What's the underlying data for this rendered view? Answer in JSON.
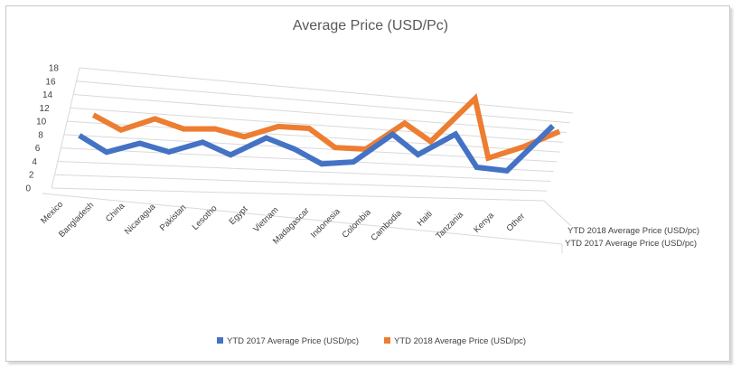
{
  "chart_data": {
    "type": "line",
    "title": "Average Price (USD/Pc)",
    "categories": [
      "Mexico",
      "Bangladesh",
      "China",
      "Nicaragua",
      "Pakistan",
      "Lesotho",
      "Egypt",
      "Vietnam",
      "Madagascar",
      "Indonesia",
      "Colombia",
      "Cambodia",
      "Haiti",
      "Tanzania",
      "Kenya",
      "Other"
    ],
    "ylim": [
      0,
      18
    ],
    "yticks": [
      0,
      2,
      4,
      6,
      8,
      10,
      12,
      14,
      16,
      18
    ],
    "series": [
      {
        "name": "YTD 2017 Average Price (USD/pc)",
        "color": "#4472C4",
        "values": [
          8.0,
          5.7,
          7.3,
          6.2,
          8.0,
          6.2,
          9.3,
          7.7,
          5.4,
          6.0,
          11.3,
          7.9,
          12.1,
          6.1,
          5.7,
          15.1
        ]
      },
      {
        "name": "YTD 2018 Average Price (USD/pc)",
        "color": "#ED7D31",
        "values": [
          10.0,
          8.0,
          10.0,
          8.7,
          9.0,
          8.0,
          10.0,
          10.0,
          7.0,
          7.0,
          12.0,
          9.0,
          17.5,
          6.5,
          9.0,
          12.5
        ]
      }
    ],
    "depth_labels": [
      "YTD 2018 Average Price (USD/pc)",
      "YTD 2017 Average Price (USD/pc)"
    ],
    "legend_position": "bottom"
  }
}
